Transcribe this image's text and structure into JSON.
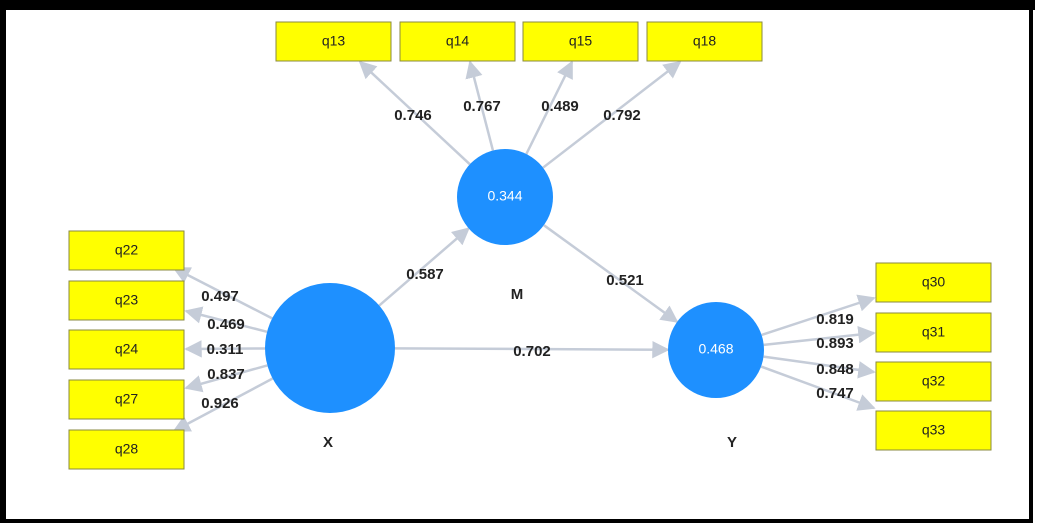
{
  "constructs": [
    {
      "label": "M",
      "r2": 0.344,
      "indicators": [
        {
          "name": "q13",
          "loading": 0.746
        },
        {
          "name": "q14",
          "loading": 0.767
        },
        {
          "name": "q15",
          "loading": 0.489
        },
        {
          "name": "q18",
          "loading": 0.792
        }
      ]
    },
    {
      "label": "X",
      "indicators": [
        {
          "name": "q22",
          "loading": 0.497
        },
        {
          "name": "q23",
          "loading": 0.469
        },
        {
          "name": "q24",
          "loading": 0.311
        },
        {
          "name": "q27",
          "loading": 0.837
        },
        {
          "name": "q28",
          "loading": 0.926
        }
      ]
    },
    {
      "label": "Y",
      "r2": 0.468,
      "indicators": [
        {
          "name": "q30",
          "loading": 0.819
        },
        {
          "name": "q31",
          "loading": 0.893
        },
        {
          "name": "q32",
          "loading": 0.848
        },
        {
          "name": "q33",
          "loading": 0.747
        }
      ]
    }
  ],
  "paths": [
    {
      "from": "X",
      "to": "M",
      "coefficient": 0.587
    },
    {
      "from": "M",
      "to": "Y",
      "coefficient": 0.521
    },
    {
      "from": "X",
      "to": "Y",
      "coefficient": 0.702
    }
  ]
}
